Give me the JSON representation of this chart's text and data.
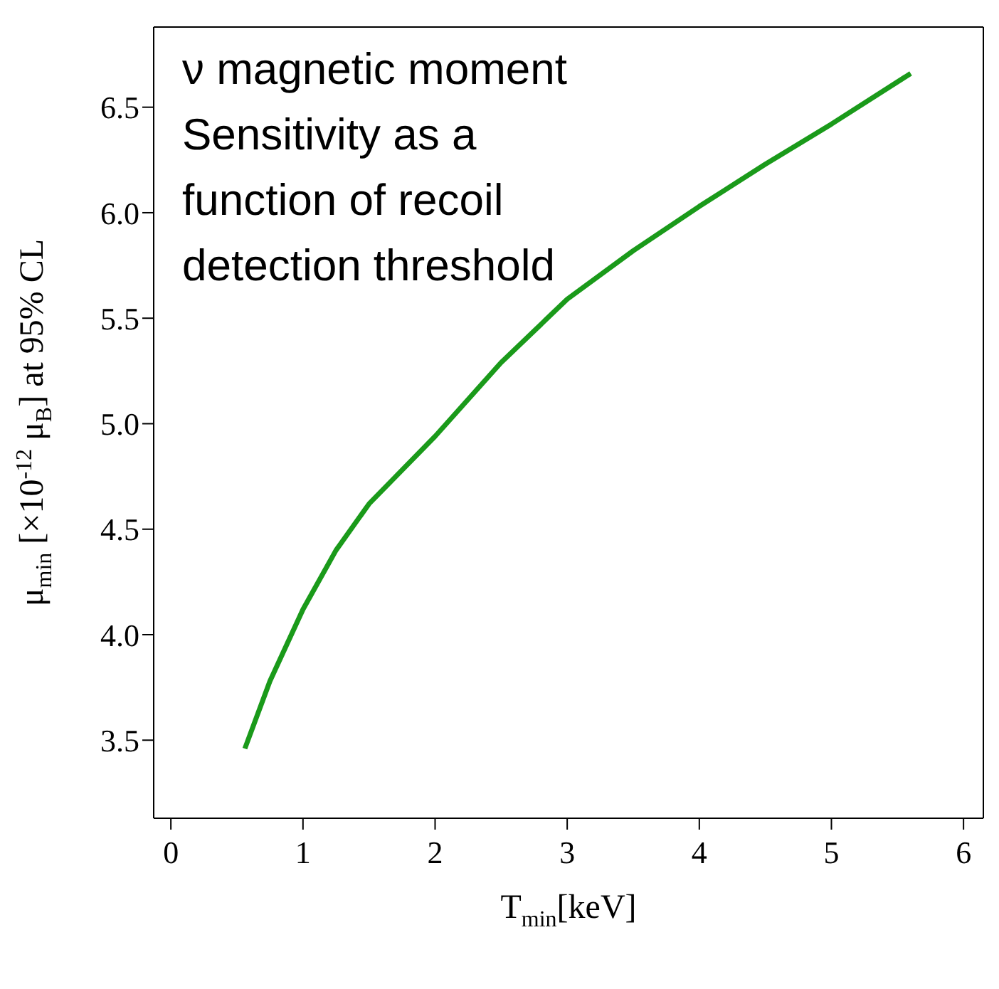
{
  "chart_data": {
    "type": "line",
    "xlabel": "T$_{min}$[keV]",
    "ylabel": "μ$_{min}$ [×10$^{-12}$ μ$_{B}$]  at 95% CL",
    "annotations": [
      "ν magnetic moment Sensitivity as a function of recoil detection threshold"
    ],
    "x": [
      0.56,
      0.75,
      1.0,
      1.25,
      1.5,
      2.0,
      2.5,
      3.0,
      3.5,
      4.0,
      4.5,
      5.0,
      5.6
    ],
    "series": [
      {
        "color": "#1a9a1a",
        "values": [
          3.46,
          3.78,
          4.12,
          4.4,
          4.62,
          4.94,
          5.29,
          5.59,
          5.82,
          6.03,
          6.23,
          6.42,
          6.66
        ]
      }
    ],
    "xlim": [
      -0.13,
      6.15
    ],
    "xticks": [
      0,
      1,
      2,
      3,
      4,
      5,
      6
    ],
    "ylim": [
      3.13,
      6.88
    ],
    "yticks": [
      3.5,
      {
        "value": 4,
        "label": "4.0"
      },
      4.5,
      {
        "value": 5,
        "label": "5.0"
      },
      5.5,
      {
        "value": 6,
        "label": "6.0"
      },
      6.5
    ],
    "grid": false,
    "legend": false,
    "marker": "none",
    "line_style": "solid"
  }
}
